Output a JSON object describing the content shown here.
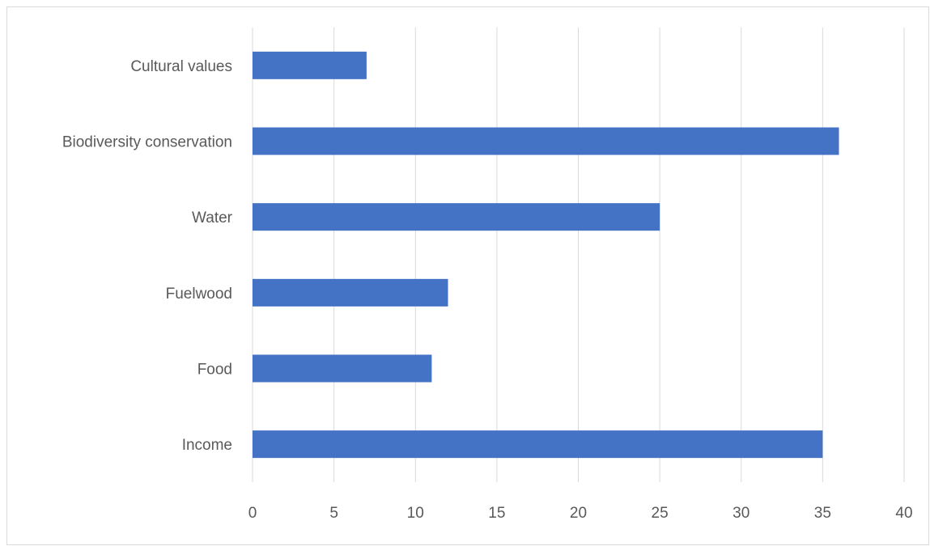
{
  "chart_data": {
    "type": "bar",
    "orientation": "horizontal",
    "title": "",
    "xlabel": "",
    "ylabel": "",
    "categories": [
      "Income",
      "Food",
      "Fuelwood",
      "Water",
      "Biodiversity conservation",
      "Cultural values"
    ],
    "values": [
      35,
      11,
      12,
      25,
      36,
      7
    ],
    "xlim": [
      0,
      40
    ],
    "xticks": [
      0,
      5,
      10,
      15,
      20,
      25,
      30,
      35,
      40
    ],
    "grid": "vertical",
    "legend": "none",
    "colors": {
      "bar": "#4472c4",
      "grid": "#d9d9d9",
      "text": "#595959"
    }
  }
}
